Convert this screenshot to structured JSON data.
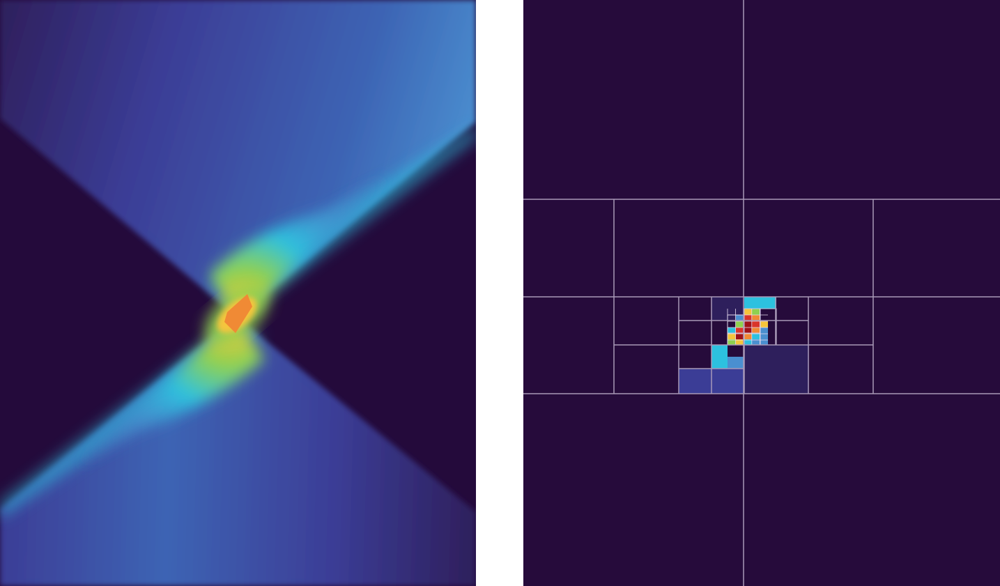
{
  "figure": {
    "panels": [
      {
        "id": "continuous-field",
        "kind": "smooth color field",
        "background_color": "#240a3b"
      },
      {
        "id": "adaptive-grid",
        "kind": "adaptively refined quadtree colored by cell value",
        "background_color": "#260b3b",
        "grid_line_color": "#a899b8"
      }
    ]
  },
  "colormap": [
    "#260b3b",
    "#2e1f5c",
    "#3b3d96",
    "#3d64b4",
    "#4a8fd0",
    "#2dc1df",
    "#8fd14f",
    "#f5c53c",
    "#f08a35",
    "#d9352a",
    "#9e1218"
  ]
}
